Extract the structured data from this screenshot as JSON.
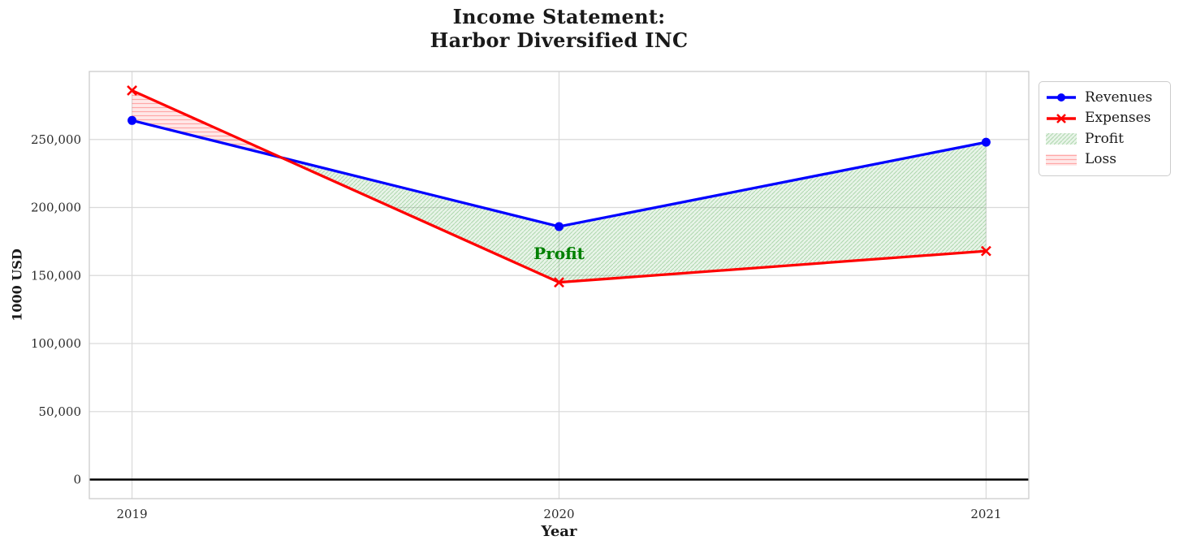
{
  "figure": {
    "title_line1": "Income Statement:",
    "title_line2": "Harbor Diversified INC"
  },
  "chart_data": {
    "type": "line",
    "title": "Income Statement: Harbor Diversified INC",
    "x": [
      2019,
      2020,
      2021
    ],
    "xtick_labels": [
      "2019",
      "2020",
      "2021"
    ],
    "series": [
      {
        "name": "Revenues",
        "color": "#0000ff",
        "marker": "circle",
        "values": [
          264000,
          186000,
          248000
        ]
      },
      {
        "name": "Expenses",
        "color": "#ff0000",
        "marker": "x",
        "values": [
          286000,
          145000,
          168000
        ]
      }
    ],
    "fill_regions": [
      {
        "name": "Profit",
        "rule": "revenues > expenses",
        "facecolor": "rgba(0,128,0,0.09)",
        "hatch": "/",
        "hatch_color": "rgba(0,128,0,0.25)"
      },
      {
        "name": "Loss",
        "rule": "expenses > revenues",
        "facecolor": "rgba(255,0,0,0.09)",
        "hatch": "-",
        "hatch_color": "rgba(255,0,0,0.28)"
      }
    ],
    "xlabel": "Year",
    "ylabel": "1000 USD",
    "yticks": [
      0,
      50000,
      100000,
      150000,
      200000,
      250000
    ],
    "ytick_labels": [
      "0",
      "50,000",
      "100,000",
      "150,000",
      "200,000",
      "250,000"
    ],
    "xlim": [
      2018.9,
      2021.1
    ],
    "ylim": [
      -14000,
      300000
    ],
    "grid": true,
    "grid_color": "#d9d9d9",
    "spine_color": "#cccccc",
    "zero_line_color": "#000000",
    "tick_color": "#2b2b2b",
    "annotation": {
      "text": "Profit",
      "x": 2020,
      "y": 166000,
      "color": "#008000"
    },
    "legend": {
      "position": "upper right, outside axes",
      "entries": [
        "Revenues",
        "Expenses",
        "Profit",
        "Loss"
      ]
    }
  }
}
